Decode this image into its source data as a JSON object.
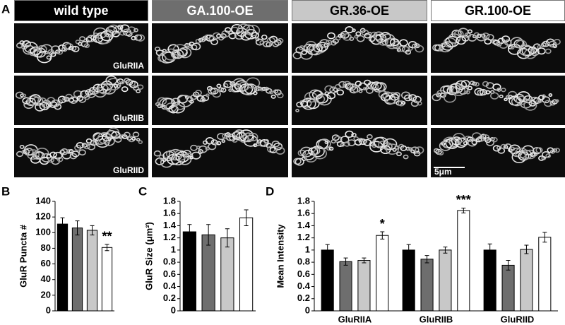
{
  "panel_a": {
    "panel_label": "A",
    "headers": [
      {
        "text": "wild type",
        "color": "#000000"
      },
      {
        "text": "GA.100-OE",
        "color": "#6e6e6e"
      },
      {
        "text": "GR.36-OE",
        "color": "#c8c8c8"
      },
      {
        "text": "GR.100-OE",
        "color": "#ffffff"
      }
    ],
    "row_labels": [
      "GluRIIA",
      "GluRIIB",
      "GluRIID"
    ],
    "scale_bar": "5μm"
  },
  "chart_data": [
    {
      "type": "bar",
      "panel_label": "B",
      "ylabel": "GluR Puncta #",
      "values": [
        111,
        106,
        103,
        81
      ],
      "errors": [
        8,
        9,
        6,
        4
      ],
      "colors": [
        "#000000",
        "#6e6e6e",
        "#c8c8c8",
        "#ffffff"
      ],
      "significance": [
        null,
        null,
        null,
        "**"
      ],
      "ylim": [
        0,
        140
      ],
      "yticks": [
        0,
        20,
        40,
        60,
        80,
        100,
        120,
        140
      ]
    },
    {
      "type": "bar",
      "panel_label": "C",
      "ylabel": "GluR Size (μm²)",
      "values": [
        1.3,
        1.25,
        1.2,
        1.53
      ],
      "errors": [
        0.12,
        0.17,
        0.15,
        0.13
      ],
      "colors": [
        "#000000",
        "#6e6e6e",
        "#c8c8c8",
        "#ffffff"
      ],
      "ylim": [
        0,
        1.8
      ],
      "yticks": [
        0,
        0.2,
        0.4,
        0.6,
        0.8,
        1,
        1.2,
        1.4,
        1.6,
        1.8
      ]
    },
    {
      "type": "grouped-bar",
      "panel_label": "D",
      "ylabel": "Mean Intensity",
      "categories": [
        "GluRIIA",
        "GluRIIB",
        "GluRIID"
      ],
      "series": [
        {
          "color": "#000000",
          "values": [
            1.0,
            1.0,
            1.0
          ],
          "errors": [
            0.09,
            0.09,
            0.1
          ]
        },
        {
          "color": "#6e6e6e",
          "values": [
            0.81,
            0.85,
            0.75
          ],
          "errors": [
            0.06,
            0.06,
            0.08
          ]
        },
        {
          "color": "#c8c8c8",
          "values": [
            0.83,
            1.0,
            1.01
          ],
          "errors": [
            0.04,
            0.05,
            0.07
          ]
        },
        {
          "color": "#ffffff",
          "values": [
            1.24,
            1.65,
            1.21
          ],
          "errors": [
            0.06,
            0.04,
            0.08
          ],
          "significance": [
            "*",
            "***",
            null
          ]
        }
      ],
      "ylim": [
        0,
        1.8
      ],
      "yticks": [
        0,
        0.2,
        0.4,
        0.6,
        0.8,
        1,
        1.2,
        1.4,
        1.6,
        1.8
      ]
    }
  ]
}
